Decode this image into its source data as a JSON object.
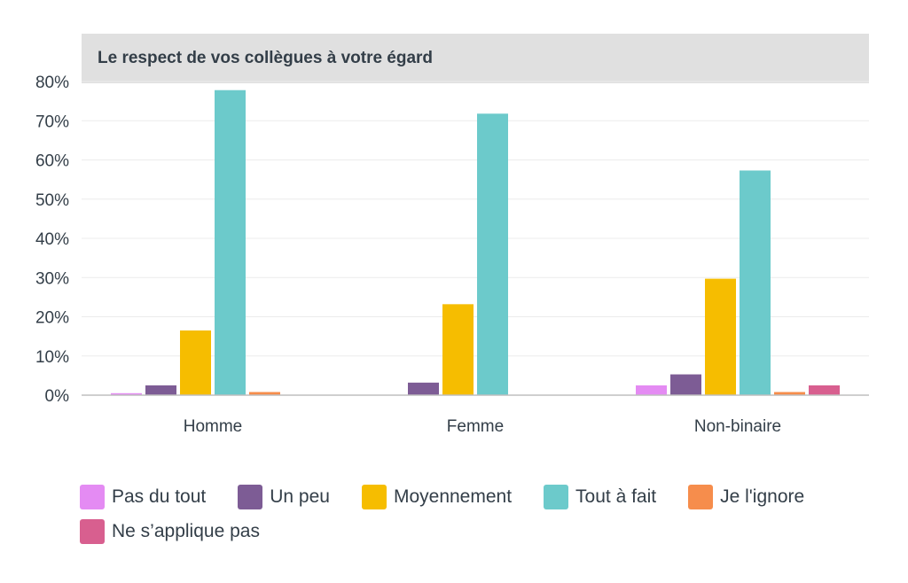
{
  "chart_data": {
    "type": "bar",
    "title": "Le respect de vos collègues à votre égard",
    "categories": [
      "Homme",
      "Femme",
      "Non-binaire"
    ],
    "ylim": [
      0,
      80
    ],
    "yticks": [
      "0%",
      "10%",
      "20%",
      "30%",
      "40%",
      "50%",
      "60%",
      "70%",
      "80%"
    ],
    "ytick_values": [
      0,
      10,
      20,
      30,
      40,
      50,
      60,
      70,
      80
    ],
    "grid": true,
    "legend_position": "bottom",
    "series": [
      {
        "name": "Pas du tout",
        "color": "#e48bf3",
        "values": [
          0.5,
          0,
          2.5
        ]
      },
      {
        "name": "Un peu",
        "color": "#7d5c95",
        "values": [
          2.5,
          3.2,
          5.3
        ]
      },
      {
        "name": "Moyennement",
        "color": "#f6bd00",
        "values": [
          16.5,
          23.2,
          29.7
        ]
      },
      {
        "name": "Tout à fait",
        "color": "#6ccacb",
        "values": [
          77.8,
          71.8,
          57.3
        ]
      },
      {
        "name": "Je l'ignore",
        "color": "#f68d4c",
        "values": [
          0.8,
          0,
          0.8
        ]
      },
      {
        "name": "Ne s’applique pas",
        "color": "#d85f8f",
        "values": [
          0,
          0,
          2.5
        ]
      }
    ]
  }
}
